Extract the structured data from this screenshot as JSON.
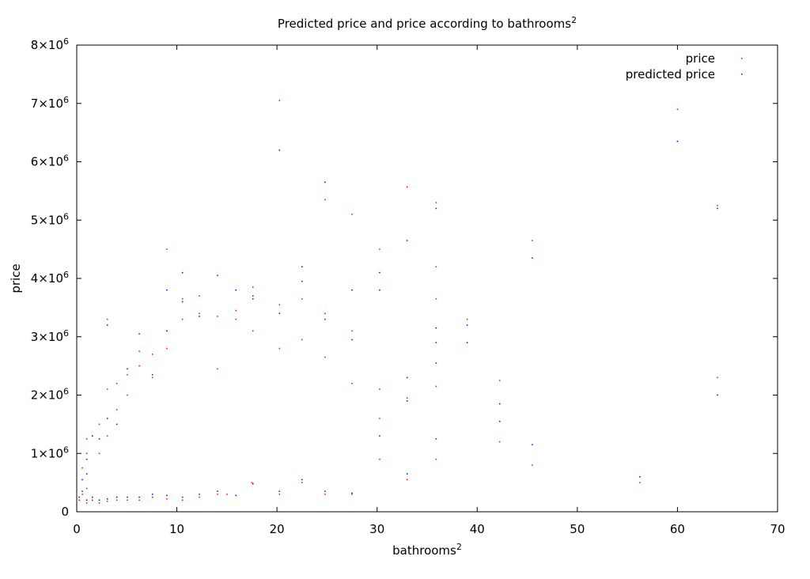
{
  "chart_data": {
    "type": "scatter",
    "title": "Predicted price and price according to bathrooms",
    "title_superscript": "2",
    "xlabel": "bathrooms",
    "xlabel_superscript": "2",
    "ylabel": "price",
    "xlim": [
      0,
      70
    ],
    "ylim": [
      0,
      8000000
    ],
    "x_ticks": [
      0,
      10,
      20,
      30,
      40,
      50,
      60,
      70
    ],
    "x_tick_labels": [
      "0",
      "10",
      "20",
      "30",
      "40",
      "50",
      "60",
      "70"
    ],
    "y_ticks": [
      0,
      1000000,
      2000000,
      3000000,
      4000000,
      5000000,
      6000000,
      7000000,
      8000000
    ],
    "y_tick_labels": [
      {
        "mantissa": "0",
        "exponent": ""
      },
      {
        "mantissa": "1×10",
        "exponent": "6"
      },
      {
        "mantissa": "2×10",
        "exponent": "6"
      },
      {
        "mantissa": "3×10",
        "exponent": "6"
      },
      {
        "mantissa": "4×10",
        "exponent": "6"
      },
      {
        "mantissa": "5×10",
        "exponent": "6"
      },
      {
        "mantissa": "6×10",
        "exponent": "6"
      },
      {
        "mantissa": "7×10",
        "exponent": "6"
      },
      {
        "mantissa": "8×10",
        "exponent": "6"
      }
    ],
    "grid": false,
    "legend_position": "top-right",
    "series": [
      {
        "name": "price",
        "color": "#ff0000",
        "points": [
          [
            0.25,
            200000
          ],
          [
            0.56,
            300000
          ],
          [
            0.56,
            750000
          ],
          [
            1.0,
            150000
          ],
          [
            1.0,
            400000
          ],
          [
            1.0,
            1000000
          ],
          [
            1.0,
            1250000
          ],
          [
            1.56,
            200000
          ],
          [
            1.56,
            1300000
          ],
          [
            2.25,
            150000
          ],
          [
            2.25,
            1500000
          ],
          [
            2.25,
            1000000
          ],
          [
            3.06,
            180000
          ],
          [
            3.06,
            2100000
          ],
          [
            3.06,
            3300000
          ],
          [
            3.06,
            1300000
          ],
          [
            4.0,
            200000
          ],
          [
            4.0,
            1750000
          ],
          [
            4.0,
            2200000
          ],
          [
            5.06,
            200000
          ],
          [
            5.06,
            2000000
          ],
          [
            5.06,
            2350000
          ],
          [
            6.25,
            200000
          ],
          [
            6.25,
            2500000
          ],
          [
            6.25,
            2750000
          ],
          [
            7.56,
            250000
          ],
          [
            7.56,
            2300000
          ],
          [
            7.56,
            2700000
          ],
          [
            9.0,
            220000
          ],
          [
            9.0,
            4500000
          ],
          [
            9.0,
            2800000
          ],
          [
            9.0,
            3100000
          ],
          [
            10.56,
            200000
          ],
          [
            10.56,
            3650000
          ],
          [
            10.56,
            3300000
          ],
          [
            12.25,
            250000
          ],
          [
            12.25,
            3700000
          ],
          [
            12.25,
            3400000
          ],
          [
            14.06,
            300000
          ],
          [
            14.06,
            3350000
          ],
          [
            14.06,
            2450000
          ],
          [
            15.0,
            300000
          ],
          [
            15.9,
            3300000
          ],
          [
            15.9,
            3450000
          ],
          [
            17.5,
            500000
          ],
          [
            17.6,
            3850000
          ],
          [
            17.6,
            3100000
          ],
          [
            20.25,
            300000
          ],
          [
            20.25,
            7050000
          ],
          [
            20.25,
            3550000
          ],
          [
            20.25,
            2800000
          ],
          [
            22.5,
            500000
          ],
          [
            22.5,
            3650000
          ],
          [
            22.5,
            2950000
          ],
          [
            24.8,
            300000
          ],
          [
            24.8,
            5350000
          ],
          [
            24.8,
            3400000
          ],
          [
            24.8,
            2650000
          ],
          [
            27.5,
            300000
          ],
          [
            27.5,
            5100000
          ],
          [
            27.5,
            3100000
          ],
          [
            27.5,
            2200000
          ],
          [
            30.25,
            900000
          ],
          [
            30.25,
            4500000
          ],
          [
            30.25,
            2100000
          ],
          [
            30.25,
            1600000
          ],
          [
            33.0,
            550000
          ],
          [
            33.0,
            5570000
          ],
          [
            33.0,
            1950000
          ],
          [
            35.9,
            900000
          ],
          [
            35.9,
            5300000
          ],
          [
            35.9,
            4200000
          ],
          [
            35.9,
            3650000
          ],
          [
            35.9,
            2150000
          ],
          [
            39.0,
            3300000
          ],
          [
            42.25,
            1200000
          ],
          [
            42.25,
            2250000
          ],
          [
            45.5,
            800000
          ],
          [
            45.5,
            4650000
          ],
          [
            56.25,
            500000
          ],
          [
            60.0,
            6900000
          ],
          [
            64.0,
            5250000
          ],
          [
            64.0,
            2300000
          ]
        ]
      },
      {
        "name": "predicted price",
        "color": "#0000ff",
        "points": [
          [
            0.25,
            250000
          ],
          [
            0.56,
            350000
          ],
          [
            0.56,
            550000
          ],
          [
            1.0,
            200000
          ],
          [
            1.0,
            650000
          ],
          [
            1.0,
            900000
          ],
          [
            1.56,
            250000
          ],
          [
            1.56,
            1300000
          ],
          [
            2.25,
            200000
          ],
          [
            2.25,
            1250000
          ],
          [
            3.06,
            220000
          ],
          [
            3.06,
            3200000
          ],
          [
            3.06,
            1600000
          ],
          [
            4.0,
            250000
          ],
          [
            4.0,
            1500000
          ],
          [
            5.06,
            250000
          ],
          [
            5.06,
            2450000
          ],
          [
            6.25,
            250000
          ],
          [
            6.25,
            3050000
          ],
          [
            7.56,
            300000
          ],
          [
            7.56,
            2350000
          ],
          [
            9.0,
            280000
          ],
          [
            9.0,
            3800000
          ],
          [
            9.0,
            3100000
          ],
          [
            10.56,
            250000
          ],
          [
            10.56,
            4100000
          ],
          [
            10.56,
            3600000
          ],
          [
            12.25,
            300000
          ],
          [
            12.25,
            3350000
          ],
          [
            14.06,
            350000
          ],
          [
            14.06,
            4050000
          ],
          [
            15.9,
            280000
          ],
          [
            15.9,
            3800000
          ],
          [
            17.6,
            480000
          ],
          [
            17.6,
            3700000
          ],
          [
            17.6,
            3650000
          ],
          [
            20.25,
            350000
          ],
          [
            20.25,
            6200000
          ],
          [
            20.25,
            3400000
          ],
          [
            22.5,
            550000
          ],
          [
            22.5,
            4200000
          ],
          [
            22.5,
            3950000
          ],
          [
            24.8,
            350000
          ],
          [
            24.8,
            5650000
          ],
          [
            24.8,
            3300000
          ],
          [
            27.5,
            320000
          ],
          [
            27.5,
            3800000
          ],
          [
            27.5,
            2950000
          ],
          [
            30.25,
            1300000
          ],
          [
            30.25,
            4100000
          ],
          [
            30.25,
            3800000
          ],
          [
            33.0,
            650000
          ],
          [
            33.0,
            4650000
          ],
          [
            33.0,
            2300000
          ],
          [
            33.0,
            1900000
          ],
          [
            35.9,
            1250000
          ],
          [
            35.9,
            5200000
          ],
          [
            35.9,
            3150000
          ],
          [
            35.9,
            2900000
          ],
          [
            35.9,
            2550000
          ],
          [
            39.0,
            2900000
          ],
          [
            39.0,
            3200000
          ],
          [
            42.25,
            1550000
          ],
          [
            42.25,
            1850000
          ],
          [
            45.5,
            1150000
          ],
          [
            45.5,
            4350000
          ],
          [
            56.25,
            600000
          ],
          [
            60.0,
            6350000
          ],
          [
            64.0,
            5200000
          ],
          [
            64.0,
            2000000
          ]
        ]
      }
    ]
  }
}
